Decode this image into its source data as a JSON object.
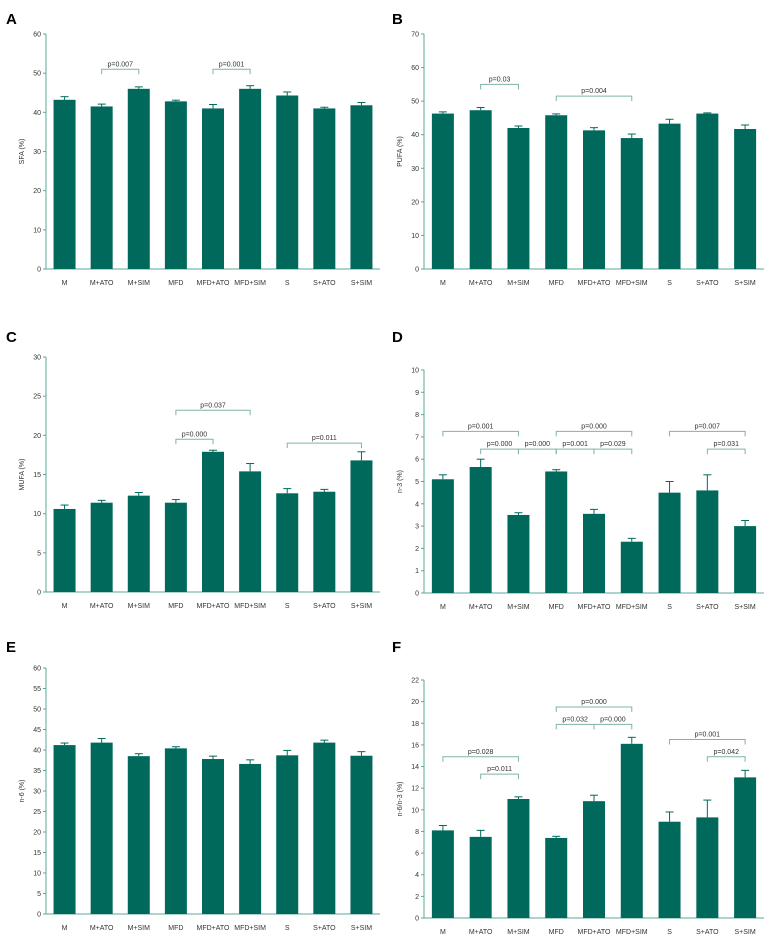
{
  "colors": {
    "bar": "#00695c",
    "axis": "#5aa89b",
    "bracket": "#7fb3aa",
    "text": "#333333"
  },
  "chart_data": [
    {
      "panel": "A",
      "type": "bar",
      "ylabel": "SFA (%)",
      "ylim": [
        0,
        60
      ],
      "yticks": [
        0,
        10,
        20,
        30,
        40,
        50,
        60
      ],
      "categories": [
        "M",
        "M+ATO",
        "M+SIM",
        "MFD",
        "MFD+ATO",
        "MFD+SIM",
        "S",
        "S+ATO",
        "S+SIM"
      ],
      "values": [
        43.2,
        41.5,
        46.0,
        42.8,
        41.0,
        46.0,
        44.3,
        41.0,
        41.8
      ],
      "errors": [
        0.8,
        0.6,
        0.5,
        0.3,
        1.0,
        0.8,
        0.9,
        0.3,
        0.7
      ],
      "annotations": [
        {
          "from": 1,
          "to": 2,
          "y": 51,
          "label": "p=0.007"
        },
        {
          "from": 4,
          "to": 5,
          "y": 51,
          "label": "p=0.001"
        }
      ]
    },
    {
      "panel": "B",
      "type": "bar",
      "ylabel": "PUFA (%)",
      "ylim": [
        0,
        70
      ],
      "yticks": [
        0,
        10,
        20,
        30,
        40,
        50,
        60,
        70
      ],
      "categories": [
        "M",
        "M+ATO",
        "M+SIM",
        "MFD",
        "MFD+ATO",
        "MFD+SIM",
        "S",
        "S+ATO",
        "S+SIM"
      ],
      "values": [
        46.3,
        47.3,
        42.0,
        45.8,
        41.3,
        39.0,
        43.3,
        46.3,
        41.7
      ],
      "errors": [
        0.5,
        0.8,
        0.6,
        0.4,
        0.8,
        1.2,
        1.3,
        0.2,
        1.2
      ],
      "annotations": [
        {
          "from": 1,
          "to": 2,
          "y": 55,
          "label": "p=0.03"
        },
        {
          "from": 3,
          "to": 5,
          "y": 51.5,
          "label": "p=0.004"
        }
      ]
    },
    {
      "panel": "C",
      "type": "bar",
      "ylabel": "MUFA (%)",
      "ylim": [
        0,
        30
      ],
      "yticks": [
        0,
        5,
        10,
        15,
        20,
        25,
        30
      ],
      "categories": [
        "M",
        "M+ATO",
        "M+SIM",
        "MFD",
        "MFD+ATO",
        "MFD+SIM",
        "S",
        "S+ATO",
        "S+SIM"
      ],
      "values": [
        10.6,
        11.4,
        12.3,
        11.4,
        17.9,
        15.4,
        12.6,
        12.8,
        16.8
      ],
      "errors": [
        0.5,
        0.3,
        0.4,
        0.4,
        0.2,
        1.0,
        0.6,
        0.3,
        1.1
      ],
      "annotations": [
        {
          "from": 3,
          "to": 5,
          "y": 23.2,
          "label": "p=0.037"
        },
        {
          "from": 3,
          "to": 4,
          "y": 19.5,
          "label": "p=0.000"
        },
        {
          "from": 6,
          "to": 8,
          "y": 19.0,
          "label": "p=0.011"
        }
      ]
    },
    {
      "panel": "D",
      "type": "bar",
      "ylabel": "n-3 (%)",
      "ylim": [
        0,
        10
      ],
      "yticks": [
        0,
        1,
        2,
        3,
        4,
        5,
        6,
        7,
        8,
        9,
        10
      ],
      "categories": [
        "M",
        "M+ATO",
        "M+SIM",
        "MFD",
        "MFD+ATO",
        "MFD+SIM",
        "S",
        "S+ATO",
        "S+SIM"
      ],
      "values": [
        5.1,
        5.65,
        3.5,
        5.45,
        3.55,
        2.3,
        4.5,
        4.6,
        3.0
      ],
      "errors": [
        0.2,
        0.35,
        0.1,
        0.08,
        0.2,
        0.15,
        0.5,
        0.7,
        0.25
      ],
      "annotations": [
        {
          "from": 0,
          "to": 2,
          "y": 7.25,
          "label": "p=0.001"
        },
        {
          "from": 1,
          "to": 2,
          "y": 6.45,
          "label": "p=0.000"
        },
        {
          "from": 2,
          "to": 3,
          "y": 6.45,
          "label": "p=0.000"
        },
        {
          "from": 3,
          "to": 5,
          "y": 7.25,
          "label": "p=0.000"
        },
        {
          "from": 3,
          "to": 4,
          "y": 6.45,
          "label": "p=0.001"
        },
        {
          "from": 4,
          "to": 5,
          "y": 6.45,
          "label": "p=0.029"
        },
        {
          "from": 6,
          "to": 8,
          "y": 7.25,
          "label": "p=0.007"
        },
        {
          "from": 7,
          "to": 8,
          "y": 6.45,
          "label": "p=0.031"
        }
      ]
    },
    {
      "panel": "E",
      "type": "bar",
      "ylabel": "n-6 (%)",
      "ylim": [
        0,
        60
      ],
      "yticks": [
        0,
        5,
        10,
        15,
        20,
        25,
        30,
        35,
        40,
        45,
        50,
        55,
        60
      ],
      "categories": [
        "M",
        "M+ATO",
        "M+SIM",
        "MFD",
        "MFD+ATO",
        "MFD+SIM",
        "S",
        "S+ATO",
        "S+SIM"
      ],
      "values": [
        41.2,
        41.8,
        38.5,
        40.4,
        37.8,
        36.6,
        38.7,
        41.8,
        38.6
      ],
      "errors": [
        0.5,
        1.0,
        0.6,
        0.4,
        0.7,
        1.0,
        1.2,
        0.6,
        1.0
      ],
      "annotations": []
    },
    {
      "panel": "F",
      "type": "bar",
      "ylabel": "n-6/n-3 (%)",
      "ylim": [
        0,
        22
      ],
      "yticks": [
        0,
        2,
        4,
        6,
        8,
        10,
        12,
        14,
        16,
        18,
        20,
        22
      ],
      "categories": [
        "M",
        "M+ATO",
        "M+SIM",
        "MFD",
        "MFD+ATO",
        "MFD+SIM",
        "S",
        "S+ATO",
        "S+SIM"
      ],
      "values": [
        8.1,
        7.5,
        11.0,
        7.4,
        10.8,
        16.1,
        8.9,
        9.3,
        13.0
      ],
      "errors": [
        0.45,
        0.6,
        0.2,
        0.15,
        0.55,
        0.6,
        0.9,
        1.6,
        0.65
      ],
      "annotations": [
        {
          "from": 0,
          "to": 2,
          "y": 14.9,
          "label": "p=0.028"
        },
        {
          "from": 1,
          "to": 2,
          "y": 13.3,
          "label": "p=0.011"
        },
        {
          "from": 3,
          "to": 5,
          "y": 19.5,
          "label": "p=0.000"
        },
        {
          "from": 3,
          "to": 4,
          "y": 17.9,
          "label": "p=0.032"
        },
        {
          "from": 4,
          "to": 5,
          "y": 17.9,
          "label": "p=0.000"
        },
        {
          "from": 6,
          "to": 8,
          "y": 16.5,
          "label": "p=0.001"
        },
        {
          "from": 7,
          "to": 8,
          "y": 14.9,
          "label": "p=0.042"
        }
      ]
    }
  ]
}
